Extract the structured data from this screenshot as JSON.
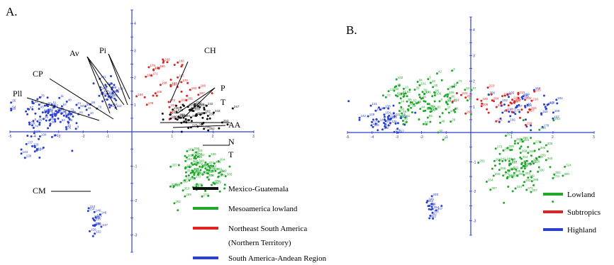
{
  "colors": {
    "axis": "#2b3fd1",
    "black": "#111111",
    "green": "#1fa82a",
    "red": "#e02222",
    "blue": "#2a3fcf"
  },
  "chart_data": [
    {
      "type": "scatter",
      "panel_label": "A.",
      "xlim": [
        -5,
        3
      ],
      "ylim": [
        -3.5,
        4.5
      ],
      "legend_placement": "bottom-right",
      "legend": [
        {
          "label": "Mexico-Guatemala",
          "color": "#111111"
        },
        {
          "label": "Mesoamerica lowland",
          "color": "#1fa82a"
        },
        {
          "label": "Northeast South America",
          "color": "#e02222"
        },
        {
          "label": "(Northern Territory)",
          "color": null
        },
        {
          "label": "South America-Andean Region",
          "color": "#2a3fcf"
        }
      ],
      "annotations": [
        "CH",
        "P",
        "T",
        "AA",
        "N",
        "T",
        "Av",
        "Pi",
        "CP",
        "Pll",
        "CM"
      ],
      "clusters": [
        {
          "group": "blue",
          "cx": -3.3,
          "cy": 0.6,
          "sx": 1.1,
          "sy": 0.55,
          "n": 95
        },
        {
          "group": "blue",
          "cx": -1.0,
          "cy": 1.4,
          "sx": 0.45,
          "sy": 0.6,
          "n": 30
        },
        {
          "group": "blue",
          "cx": -4.0,
          "cy": -0.4,
          "sx": 0.5,
          "sy": 0.35,
          "n": 18
        },
        {
          "group": "blue",
          "cx": -1.6,
          "cy": -2.6,
          "sx": 0.25,
          "sy": 0.35,
          "n": 16
        },
        {
          "group": "red",
          "cx": 0.9,
          "cy": 1.7,
          "sx": 0.6,
          "sy": 0.9,
          "n": 40
        },
        {
          "group": "black",
          "cx": 1.5,
          "cy": 0.6,
          "sx": 0.6,
          "sy": 0.45,
          "n": 60
        },
        {
          "group": "green",
          "cx": 1.6,
          "cy": -1.2,
          "sx": 0.55,
          "sy": 0.65,
          "n": 95
        }
      ]
    },
    {
      "type": "scatter",
      "panel_label": "B.",
      "xlim": [
        -5,
        3
      ],
      "ylim": [
        -3.5,
        4.5
      ],
      "legend_placement": "bottom-right",
      "legend": [
        {
          "label": "Lowland",
          "color": "#1fa82a"
        },
        {
          "label": "Subtropics",
          "color": "#e02222"
        },
        {
          "label": "Highland",
          "color": "#2a3fcf"
        }
      ],
      "clusters": [
        {
          "group": "green",
          "cx": -1.8,
          "cy": 1.2,
          "sx": 1.3,
          "sy": 0.9,
          "n": 110
        },
        {
          "group": "blue",
          "cx": -3.5,
          "cy": 0.5,
          "sx": 0.9,
          "sy": 0.5,
          "n": 45
        },
        {
          "group": "blue",
          "cx": 1.4,
          "cy": 0.9,
          "sx": 0.7,
          "sy": 0.6,
          "n": 45
        },
        {
          "group": "red",
          "cx": 0.9,
          "cy": 1.2,
          "sx": 1.0,
          "sy": 0.7,
          "n": 40
        },
        {
          "group": "green",
          "cx": 1.2,
          "cy": -1.1,
          "sx": 0.7,
          "sy": 0.8,
          "n": 100
        },
        {
          "group": "blue",
          "cx": -1.6,
          "cy": -2.6,
          "sx": 0.25,
          "sy": 0.35,
          "n": 16
        }
      ]
    }
  ]
}
